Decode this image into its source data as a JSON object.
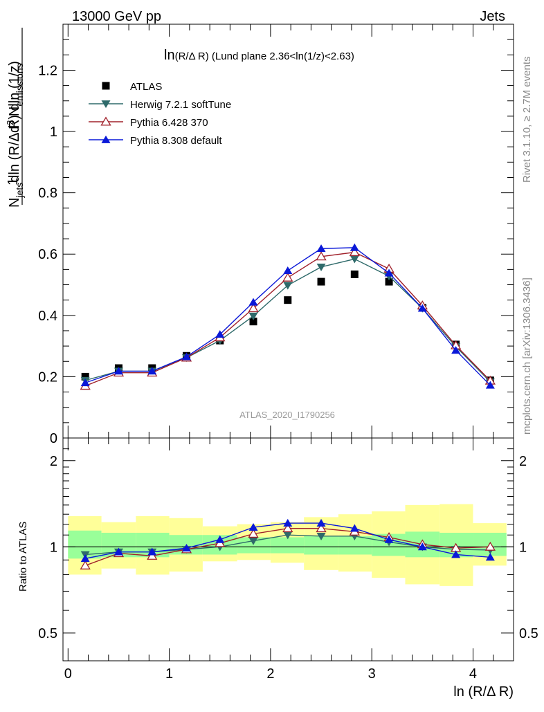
{
  "header": {
    "energy_label": "13000 GeV pp",
    "category_label": "Jets"
  },
  "side_labels": {
    "rivet": "Rivet 3.1.10, ≥ 2.7M events",
    "mcplots": "mcplots.cern.ch [arXiv:1306.3436]"
  },
  "watermark": "ATLAS_2020_I1790256",
  "chart_data": [
    {
      "type": "scatter",
      "title": "ln(R/Δ R) (Lund plane 2.36<ln(1/z)<2.63)",
      "xlabel": "ln (R/Δ R)",
      "ylabel": "1/N_jets d²N_emissions / dln(R/Δ R) dln(1/z)",
      "xlim": [
        -0.05,
        4.4
      ],
      "ylim": [
        0,
        1.35
      ],
      "y_ticks": [
        "0",
        "0.2",
        "0.4",
        "0.6",
        "0.8",
        "1",
        "1.2"
      ],
      "legend_position": "top-left",
      "x": [
        0.17,
        0.5,
        0.83,
        1.17,
        1.5,
        1.83,
        2.17,
        2.5,
        2.83,
        3.17,
        3.5,
        3.83,
        4.17
      ],
      "series": [
        {
          "name": "ATLAS",
          "color": "#000000",
          "marker": "square",
          "line": false,
          "values": [
            0.2,
            0.228,
            0.228,
            0.268,
            0.318,
            0.38,
            0.45,
            0.51,
            0.534,
            0.51,
            0.425,
            0.305,
            0.188
          ]
        },
        {
          "name": "Herwig 7.2.1 softTune",
          "color": "#2e6a6a",
          "marker": "triangle-down",
          "line": true,
          "values": [
            0.188,
            0.218,
            0.218,
            0.262,
            0.318,
            0.398,
            0.498,
            0.558,
            0.584,
            0.528,
            0.423,
            0.298,
            0.183
          ]
        },
        {
          "name": "Pythia 6.428 370",
          "color": "#a0202a",
          "marker": "triangle-open",
          "line": true,
          "values": [
            0.17,
            0.213,
            0.213,
            0.262,
            0.328,
            0.423,
            0.523,
            0.592,
            0.606,
            0.552,
            0.432,
            0.302,
            0.187
          ]
        },
        {
          "name": "Pythia 8.308 default",
          "color": "#0a18d8",
          "marker": "triangle-up",
          "line": true,
          "values": [
            0.18,
            0.218,
            0.218,
            0.265,
            0.338,
            0.443,
            0.546,
            0.618,
            0.621,
            0.538,
            0.423,
            0.286,
            0.172
          ]
        }
      ]
    },
    {
      "type": "scatter",
      "ylabel": "Ratio to ATLAS",
      "xlabel": "ln (R/Δ R)",
      "y_scale": "log",
      "ylim": [
        0.4,
        2.4
      ],
      "y_ticks": [
        "0.5",
        "1",
        "2"
      ],
      "x_ticks": [
        "0",
        "1",
        "2",
        "3",
        "4"
      ],
      "reference_line": 1,
      "bin_edges": [
        0,
        0.33,
        0.67,
        1.0,
        1.33,
        1.67,
        2.0,
        2.33,
        2.67,
        3.0,
        3.33,
        3.67,
        4.0,
        4.33
      ],
      "band_inner": {
        "color": "#99ff99",
        "low": [
          0.91,
          0.92,
          0.92,
          0.94,
          0.94,
          0.95,
          0.95,
          0.94,
          0.94,
          0.93,
          0.92,
          0.92,
          0.93
        ],
        "high": [
          1.14,
          1.12,
          1.12,
          1.1,
          1.1,
          1.08,
          1.08,
          1.09,
          1.09,
          1.11,
          1.13,
          1.12,
          1.12
        ]
      },
      "band_outer": {
        "color": "#ffff99",
        "low": [
          0.8,
          0.84,
          0.8,
          0.82,
          0.89,
          0.9,
          0.88,
          0.83,
          0.82,
          0.78,
          0.74,
          0.73,
          0.86
        ],
        "high": [
          1.28,
          1.22,
          1.28,
          1.26,
          1.18,
          1.2,
          1.22,
          1.27,
          1.3,
          1.33,
          1.4,
          1.41,
          1.21
        ]
      },
      "x": [
        0.17,
        0.5,
        0.83,
        1.17,
        1.5,
        1.83,
        2.17,
        2.5,
        2.83,
        3.17,
        3.5,
        3.83,
        4.17
      ],
      "series": [
        {
          "name": "Herwig 7.2.1 softTune",
          "color": "#2e6a6a",
          "marker": "triangle-down",
          "line": true,
          "values": [
            0.94,
            0.96,
            0.96,
            0.98,
            1.0,
            1.05,
            1.1,
            1.09,
            1.09,
            1.04,
            1.0,
            0.98,
            0.975
          ]
        },
        {
          "name": "Pythia 6.428 370",
          "color": "#a0202a",
          "marker": "triangle-open",
          "line": true,
          "values": [
            0.86,
            0.95,
            0.93,
            0.98,
            1.03,
            1.11,
            1.16,
            1.16,
            1.13,
            1.08,
            1.02,
            0.99,
            1.0
          ]
        },
        {
          "name": "Pythia 8.308 default",
          "color": "#0a18d8",
          "marker": "triangle-up",
          "line": true,
          "values": [
            0.91,
            0.96,
            0.96,
            0.99,
            1.06,
            1.17,
            1.21,
            1.21,
            1.16,
            1.06,
            1.0,
            0.94,
            0.92
          ]
        }
      ]
    }
  ]
}
